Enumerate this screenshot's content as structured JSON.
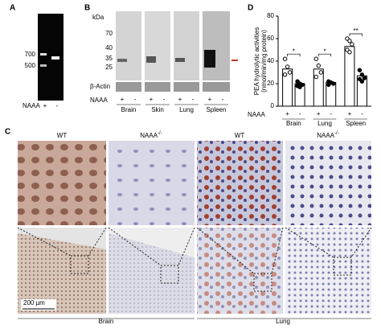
{
  "panel_a": {
    "label": "A",
    "markers": [
      "700",
      "500"
    ],
    "row_label": "NAAA",
    "conditions": [
      "+",
      "-"
    ]
  },
  "panel_b": {
    "label": "B",
    "unit": "kDa",
    "markers": [
      "70",
      "40",
      "35",
      "25"
    ],
    "loading": "β-Actin",
    "row_label": "NAAA",
    "conditions": [
      "+",
      "-"
    ],
    "tissues": [
      "Brain",
      "Skin",
      "Lung",
      "Spleen"
    ]
  },
  "panel_c": {
    "label": "C",
    "headers": [
      {
        "text": "WT"
      },
      {
        "text": "NAAA",
        "sup": "-/-"
      },
      {
        "text": "WT"
      },
      {
        "text": "NAAA",
        "sup": "-/-"
      }
    ],
    "scale_bar": "200 µm",
    "tissues": [
      "Brain",
      "Lung"
    ]
  },
  "panel_d": {
    "type": "bar",
    "label": "D",
    "ylabel": [
      "PEA hydrolytic activities",
      "(nmol/min/mg protein)"
    ],
    "ylim": [
      0,
      80
    ],
    "yticks": [
      0,
      20,
      40,
      60,
      80
    ],
    "row_label": "NAAA",
    "conditions": [
      "+",
      "-"
    ],
    "groups": [
      "Brain",
      "Lung",
      "Spleen"
    ],
    "means": [
      [
        33,
        20
      ],
      [
        33,
        21
      ],
      [
        53,
        27
      ]
    ],
    "points": [
      [
        [
          42,
          35,
          30,
          28
        ],
        [
          22,
          20,
          19,
          18,
          17
        ]
      ],
      [
        [
          42,
          36,
          30,
          26
        ],
        [
          22,
          21,
          20,
          19
        ]
      ],
      [
        [
          60,
          58,
          55,
          50,
          48
        ],
        [
          32,
          28,
          25,
          24,
          22
        ]
      ]
    ],
    "significance": [
      "*",
      "*",
      "**"
    ]
  }
}
